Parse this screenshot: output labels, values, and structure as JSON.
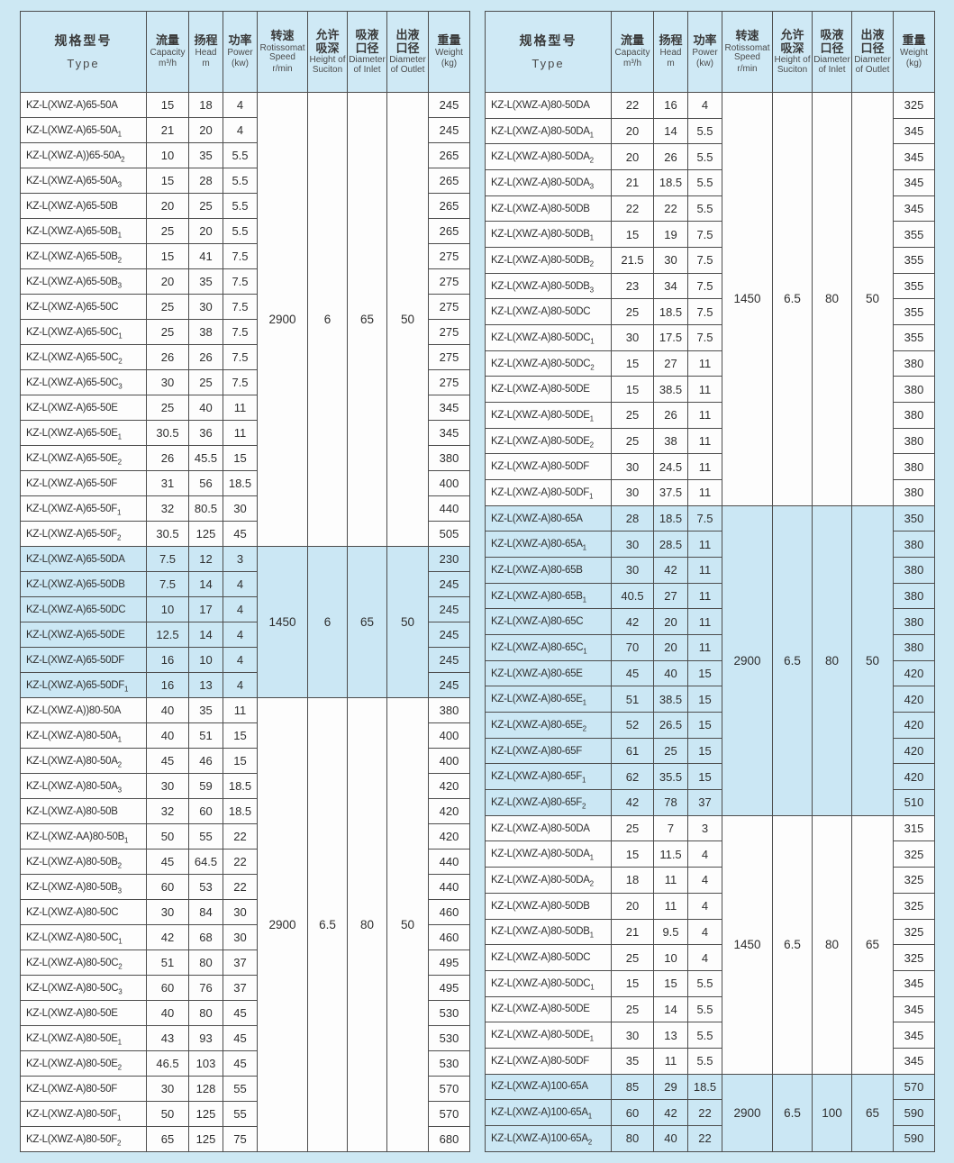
{
  "colors": {
    "page_bg": "#cde8f3",
    "header_bg": "#cfe9f5",
    "cell_bg": "#fdfdfd",
    "highlight_bg": "#cbe7f4",
    "border": "#4d4d4d",
    "text": "#333333"
  },
  "row_format": [
    "model",
    "subscript",
    "capacity_m3h",
    "head_m",
    "power_kw",
    "weight_kg"
  ],
  "section_format": "speed r/min, suction height m, inlet dia mm, outlet dia mm shared (merged) across section rows",
  "columns": [
    {
      "zh": "规格型号",
      "en": "Type",
      "unit": ""
    },
    {
      "zh": "流量",
      "en": "Capacity",
      "unit": "m³/h"
    },
    {
      "zh": "扬程",
      "en": "Head",
      "unit": "m"
    },
    {
      "zh": "功率",
      "en": "Power",
      "unit": "(kw)"
    },
    {
      "zh": "转速",
      "en": "Rotissomat Speed",
      "unit": "r/min"
    },
    {
      "zh": "允许吸深",
      "en": "Height of Suciton",
      "unit": ""
    },
    {
      "zh": "吸液口径",
      "en": "Diameter of Inlet",
      "unit": ""
    },
    {
      "zh": "出液口径",
      "en": "Diameter of Outlet",
      "unit": ""
    },
    {
      "zh": "重量",
      "en": "Weight",
      "unit": "(kg)"
    }
  ],
  "tables": [
    {
      "name": "left",
      "sections": [
        {
          "highlight": false,
          "speed": "2900",
          "suction": "6",
          "inlet": "65",
          "outlet": "50",
          "rows": [
            [
              "KZ-L(XWZ-A)65-50A",
              "",
              "15",
              "18",
              "4",
              "245"
            ],
            [
              "KZ-L(XWZ-A)65-50A",
              "1",
              "21",
              "20",
              "4",
              "245"
            ],
            [
              "KZ-L(XWZ-A))65-50A",
              "2",
              "10",
              "35",
              "5.5",
              "265"
            ],
            [
              "KZ-L(XWZ-A)65-50A",
              "3",
              "15",
              "28",
              "5.5",
              "265"
            ],
            [
              "KZ-L(XWZ-A)65-50B",
              "",
              "20",
              "25",
              "5.5",
              "265"
            ],
            [
              "KZ-L(XWZ-A)65-50B",
              "1",
              "25",
              "20",
              "5.5",
              "265"
            ],
            [
              "KZ-L(XWZ-A)65-50B",
              "2",
              "15",
              "41",
              "7.5",
              "275"
            ],
            [
              "KZ-L(XWZ-A)65-50B",
              "3",
              "20",
              "35",
              "7.5",
              "275"
            ],
            [
              "KZ-L(XWZ-A)65-50C",
              "",
              "25",
              "30",
              "7.5",
              "275"
            ],
            [
              "KZ-L(XWZ-A)65-50C",
              "1",
              "25",
              "38",
              "7.5",
              "275"
            ],
            [
              "KZ-L(XWZ-A)65-50C",
              "2",
              "26",
              "26",
              "7.5",
              "275"
            ],
            [
              "KZ-L(XWZ-A)65-50C",
              "3",
              "30",
              "25",
              "7.5",
              "275"
            ],
            [
              "KZ-L(XWZ-A)65-50E",
              "",
              "25",
              "40",
              "11",
              "345"
            ],
            [
              "KZ-L(XWZ-A)65-50E",
              "1",
              "30.5",
              "36",
              "11",
              "345"
            ],
            [
              "KZ-L(XWZ-A)65-50E",
              "2",
              "26",
              "45.5",
              "15",
              "380"
            ],
            [
              "KZ-L(XWZ-A)65-50F",
              "",
              "31",
              "56",
              "18.5",
              "400"
            ],
            [
              "KZ-L(XWZ-A)65-50F",
              "1",
              "32",
              "80.5",
              "30",
              "440"
            ],
            [
              "KZ-L(XWZ-A)65-50F",
              "2",
              "30.5",
              "125",
              "45",
              "505"
            ]
          ]
        },
        {
          "highlight": true,
          "speed": "1450",
          "suction": "6",
          "inlet": "65",
          "outlet": "50",
          "rows": [
            [
              "KZ-L(XWZ-A)65-50DA",
              "",
              "7.5",
              "12",
              "3",
              "230"
            ],
            [
              "KZ-L(XWZ-A)65-50DB",
              "",
              "7.5",
              "14",
              "4",
              "245"
            ],
            [
              "KZ-L(XWZ-A)65-50DC",
              "",
              "10",
              "17",
              "4",
              "245"
            ],
            [
              "KZ-L(XWZ-A)65-50DE",
              "",
              "12.5",
              "14",
              "4",
              "245"
            ],
            [
              "KZ-L(XWZ-A)65-50DF",
              "",
              "16",
              "10",
              "4",
              "245"
            ],
            [
              "KZ-L(XWZ-A)65-50DF",
              "1",
              "16",
              "13",
              "4",
              "245"
            ]
          ]
        },
        {
          "highlight": false,
          "speed": "2900",
          "suction": "6.5",
          "inlet": "80",
          "outlet": "50",
          "rows": [
            [
              "KZ-L(XWZ-A))80-50A",
              "",
              "40",
              "35",
              "11",
              "380"
            ],
            [
              "KZ-L(XWZ-A)80-50A",
              "1",
              "40",
              "51",
              "15",
              "400"
            ],
            [
              "KZ-L(XWZ-A)80-50A",
              "2",
              "45",
              "46",
              "15",
              "400"
            ],
            [
              "KZ-L(XWZ-A)80-50A",
              "3",
              "30",
              "59",
              "18.5",
              "420"
            ],
            [
              "KZ-L(XWZ-A)80-50B",
              "",
              "32",
              "60",
              "18.5",
              "420"
            ],
            [
              "KZ-L(XWZ-AA)80-50B",
              "1",
              "50",
              "55",
              "22",
              "420"
            ],
            [
              "KZ-L(XWZ-A)80-50B",
              "2",
              "45",
              "64.5",
              "22",
              "440"
            ],
            [
              "KZ-L(XWZ-A)80-50B",
              "3",
              "60",
              "53",
              "22",
              "440"
            ],
            [
              "KZ-L(XWZ-A)80-50C",
              "",
              "30",
              "84",
              "30",
              "460"
            ],
            [
              "KZ-L(XWZ-A)80-50C",
              "1",
              "42",
              "68",
              "30",
              "460"
            ],
            [
              "KZ-L(XWZ-A)80-50C",
              "2",
              "51",
              "80",
              "37",
              "495"
            ],
            [
              "KZ-L(XWZ-A)80-50C",
              "3",
              "60",
              "76",
              "37",
              "495"
            ],
            [
              "KZ-L(XWZ-A)80-50E",
              "",
              "40",
              "80",
              "45",
              "530"
            ],
            [
              "KZ-L(XWZ-A)80-50E",
              "1",
              "43",
              "93",
              "45",
              "530"
            ],
            [
              "KZ-L(XWZ-A)80-50E",
              "2",
              "46.5",
              "103",
              "45",
              "530"
            ],
            [
              "KZ-L(XWZ-A)80-50F",
              "",
              "30",
              "128",
              "55",
              "570"
            ],
            [
              "KZ-L(XWZ-A)80-50F",
              "1",
              "50",
              "125",
              "55",
              "570"
            ],
            [
              "KZ-L(XWZ-A)80-50F",
              "2",
              "65",
              "125",
              "75",
              "680"
            ]
          ]
        }
      ]
    },
    {
      "name": "right",
      "sections": [
        {
          "highlight": false,
          "speed": "1450",
          "suction": "6.5",
          "inlet": "80",
          "outlet": "50",
          "rows": [
            [
              "KZ-L(XWZ-A)80-50DA",
              "",
              "22",
              "16",
              "4",
              "325"
            ],
            [
              "KZ-L(XWZ-A)80-50DA",
              "1",
              "20",
              "14",
              "5.5",
              "345"
            ],
            [
              "KZ-L(XWZ-A)80-50DA",
              "2",
              "20",
              "26",
              "5.5",
              "345"
            ],
            [
              "KZ-L(XWZ-A)80-50DA",
              "3",
              "21",
              "18.5",
              "5.5",
              "345"
            ],
            [
              "KZ-L(XWZ-A)80-50DB",
              "",
              "22",
              "22",
              "5.5",
              "345"
            ],
            [
              "KZ-L(XWZ-A)80-50DB",
              "1",
              "15",
              "19",
              "7.5",
              "355"
            ],
            [
              "KZ-L(XWZ-A)80-50DB",
              "2",
              "21.5",
              "30",
              "7.5",
              "355"
            ],
            [
              "KZ-L(XWZ-A)80-50DB",
              "3",
              "23",
              "34",
              "7.5",
              "355"
            ],
            [
              "KZ-L(XWZ-A)80-50DC",
              "",
              "25",
              "18.5",
              "7.5",
              "355"
            ],
            [
              "KZ-L(XWZ-A)80-50DC",
              "1",
              "30",
              "17.5",
              "7.5",
              "355"
            ],
            [
              "KZ-L(XWZ-A)80-50DC",
              "2",
              "15",
              "27",
              "11",
              "380"
            ],
            [
              "KZ-L(XWZ-A)80-50DE",
              "",
              "15",
              "38.5",
              "11",
              "380"
            ],
            [
              "KZ-L(XWZ-A)80-50DE",
              "1",
              "25",
              "26",
              "11",
              "380"
            ],
            [
              "KZ-L(XWZ-A)80-50DE",
              "2",
              "25",
              "38",
              "11",
              "380"
            ],
            [
              "KZ-L(XWZ-A)80-50DF",
              "",
              "30",
              "24.5",
              "11",
              "380"
            ],
            [
              "KZ-L(XWZ-A)80-50DF",
              "1",
              "30",
              "37.5",
              "11",
              "380"
            ]
          ]
        },
        {
          "highlight": true,
          "speed": "2900",
          "suction": "6.5",
          "inlet": "80",
          "outlet": "50",
          "rows": [
            [
              "KZ-L(XWZ-A)80-65A",
              "",
              "28",
              "18.5",
              "7.5",
              "350"
            ],
            [
              "KZ-L(XWZ-A)80-65A",
              "1",
              "30",
              "28.5",
              "11",
              "380"
            ],
            [
              "KZ-L(XWZ-A)80-65B",
              "",
              "30",
              "42",
              "11",
              "380"
            ],
            [
              "KZ-L(XWZ-A)80-65B",
              "1",
              "40.5",
              "27",
              "11",
              "380"
            ],
            [
              "KZ-L(XWZ-A)80-65C",
              "",
              "42",
              "20",
              "11",
              "380"
            ],
            [
              "KZ-L(XWZ-A)80-65C",
              "1",
              "70",
              "20",
              "11",
              "380"
            ],
            [
              "KZ-L(XWZ-A)80-65E",
              "",
              "45",
              "40",
              "15",
              "420"
            ],
            [
              "KZ-L(XWZ-A)80-65E",
              "1",
              "51",
              "38.5",
              "15",
              "420"
            ],
            [
              "KZ-L(XWZ-A)80-65E",
              "2",
              "52",
              "26.5",
              "15",
              "420"
            ],
            [
              "KZ-L(XWZ-A)80-65F",
              "",
              "61",
              "25",
              "15",
              "420"
            ],
            [
              "KZ-L(XWZ-A)80-65F",
              "1",
              "62",
              "35.5",
              "15",
              "420"
            ],
            [
              "KZ-L(XWZ-A)80-65F",
              "2",
              "42",
              "78",
              "37",
              "510"
            ]
          ]
        },
        {
          "highlight": false,
          "speed": "1450",
          "suction": "6.5",
          "inlet": "80",
          "outlet": "65",
          "rows": [
            [
              "KZ-L(XWZ-A)80-50DA",
              "",
              "25",
              "7",
              "3",
              "315"
            ],
            [
              "KZ-L(XWZ-A)80-50DA",
              "1",
              "15",
              "11.5",
              "4",
              "325"
            ],
            [
              "KZ-L(XWZ-A)80-50DA",
              "2",
              "18",
              "11",
              "4",
              "325"
            ],
            [
              "KZ-L(XWZ-A)80-50DB",
              "",
              "20",
              "11",
              "4",
              "325"
            ],
            [
              "KZ-L(XWZ-A)80-50DB",
              "1",
              "21",
              "9.5",
              "4",
              "325"
            ],
            [
              "KZ-L(XWZ-A)80-50DC",
              "",
              "25",
              "10",
              "4",
              "325"
            ],
            [
              "KZ-L(XWZ-A)80-50DC",
              "1",
              "15",
              "15",
              "5.5",
              "345"
            ],
            [
              "KZ-L(XWZ-A)80-50DE",
              "",
              "25",
              "14",
              "5.5",
              "345"
            ],
            [
              "KZ-L(XWZ-A)80-50DE",
              "1",
              "30",
              "13",
              "5.5",
              "345"
            ],
            [
              "KZ-L(XWZ-A)80-50DF",
              "",
              "35",
              "11",
              "5.5",
              "345"
            ]
          ]
        },
        {
          "highlight": true,
          "speed": "2900",
          "suction": "6.5",
          "inlet": "100",
          "outlet": "65",
          "rows": [
            [
              "KZ-L(XWZ-A)100-65A",
              "",
              "85",
              "29",
              "18.5",
              "570"
            ],
            [
              "KZ-L(XWZ-A)100-65A",
              "1",
              "60",
              "42",
              "22",
              "590"
            ],
            [
              "KZ-L(XWZ-A)100-65A",
              "2",
              "80",
              "40",
              "22",
              "590"
            ]
          ]
        }
      ]
    }
  ]
}
